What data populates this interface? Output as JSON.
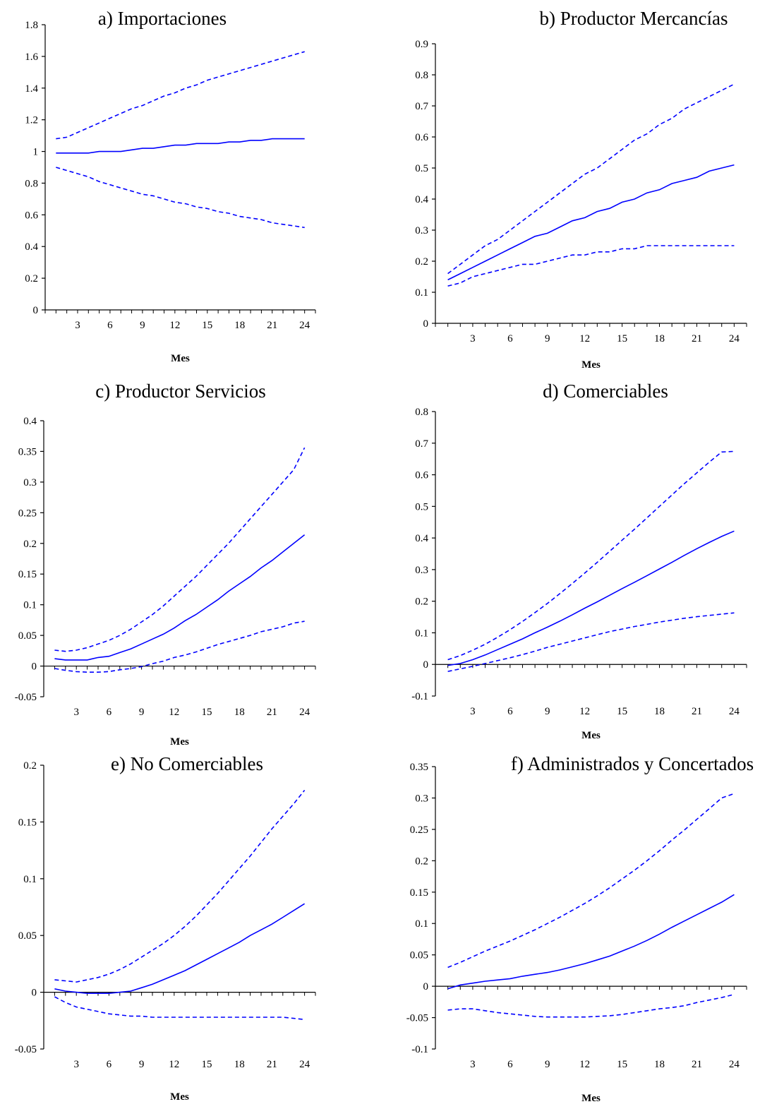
{
  "figure": {
    "series_color": "#0000ff",
    "axis_color": "#000000",
    "background": "#ffffff"
  },
  "chart_data": [
    {
      "id": "a",
      "type": "line",
      "title": "a)      Importaciones",
      "xlabel": "Mes",
      "ylabel": "",
      "xlim": [
        0,
        25
      ],
      "ylim": [
        0,
        1.8
      ],
      "x_ticks": [
        3,
        6,
        9,
        12,
        15,
        18,
        21,
        24
      ],
      "y_ticks": [
        0,
        0.2,
        0.4,
        0.6,
        0.8,
        1,
        1.2,
        1.4,
        1.6,
        1.8
      ],
      "y_tick_labels": [
        "0",
        "0.2",
        "0.4",
        "0.6",
        "0.8",
        "1",
        "1.2",
        "1.4",
        "1.6",
        "1.8"
      ],
      "grid": false,
      "x": [
        1,
        2,
        3,
        4,
        5,
        6,
        7,
        8,
        9,
        10,
        11,
        12,
        13,
        14,
        15,
        16,
        17,
        18,
        19,
        20,
        21,
        22,
        23,
        24
      ],
      "series": [
        {
          "style": "solid",
          "values": [
            0.99,
            0.99,
            0.99,
            0.99,
            1.0,
            1.0,
            1.0,
            1.01,
            1.02,
            1.02,
            1.03,
            1.04,
            1.04,
            1.05,
            1.05,
            1.05,
            1.06,
            1.06,
            1.07,
            1.07,
            1.08,
            1.08,
            1.08,
            1.08
          ]
        },
        {
          "style": "dashed",
          "values": [
            1.08,
            1.09,
            1.12,
            1.15,
            1.18,
            1.21,
            1.24,
            1.27,
            1.29,
            1.32,
            1.35,
            1.37,
            1.4,
            1.42,
            1.45,
            1.47,
            1.49,
            1.51,
            1.53,
            1.55,
            1.57,
            1.59,
            1.61,
            1.63
          ]
        },
        {
          "style": "dashed",
          "values": [
            0.9,
            0.88,
            0.86,
            0.84,
            0.81,
            0.79,
            0.77,
            0.75,
            0.73,
            0.72,
            0.7,
            0.68,
            0.67,
            0.65,
            0.64,
            0.62,
            0.61,
            0.59,
            0.58,
            0.57,
            0.55,
            0.54,
            0.53,
            0.52
          ]
        }
      ]
    },
    {
      "id": "b",
      "type": "line",
      "title": "b)   Productor Mercancías",
      "xlabel": "Mes",
      "ylabel": "",
      "xlim": [
        0,
        25
      ],
      "ylim": [
        0,
        0.9
      ],
      "x_ticks": [
        3,
        6,
        9,
        12,
        15,
        18,
        21,
        24
      ],
      "y_ticks": [
        0,
        0.1,
        0.2,
        0.3,
        0.4,
        0.5,
        0.6,
        0.7,
        0.8,
        0.9
      ],
      "y_tick_labels": [
        "0",
        "0.1",
        "0.2",
        "0.3",
        "0.4",
        "0.5",
        "0.6",
        "0.7",
        "0.8",
        "0.9"
      ],
      "grid": false,
      "x": [
        1,
        2,
        3,
        4,
        5,
        6,
        7,
        8,
        9,
        10,
        11,
        12,
        13,
        14,
        15,
        16,
        17,
        18,
        19,
        20,
        21,
        22,
        23,
        24
      ],
      "series": [
        {
          "style": "solid",
          "values": [
            0.14,
            0.16,
            0.18,
            0.2,
            0.22,
            0.24,
            0.26,
            0.28,
            0.29,
            0.31,
            0.33,
            0.34,
            0.36,
            0.37,
            0.39,
            0.4,
            0.42,
            0.43,
            0.45,
            0.46,
            0.47,
            0.49,
            0.5,
            0.51
          ]
        },
        {
          "style": "dashed",
          "values": [
            0.16,
            0.19,
            0.22,
            0.25,
            0.27,
            0.3,
            0.33,
            0.36,
            0.39,
            0.42,
            0.45,
            0.48,
            0.5,
            0.53,
            0.56,
            0.59,
            0.61,
            0.64,
            0.66,
            0.69,
            0.71,
            0.73,
            0.75,
            0.77
          ]
        },
        {
          "style": "dashed",
          "values": [
            0.12,
            0.13,
            0.15,
            0.16,
            0.17,
            0.18,
            0.19,
            0.19,
            0.2,
            0.21,
            0.22,
            0.22,
            0.23,
            0.23,
            0.24,
            0.24,
            0.25,
            0.25,
            0.25,
            0.25,
            0.25,
            0.25,
            0.25,
            0.25
          ]
        }
      ]
    },
    {
      "id": "c",
      "type": "line",
      "title": "c)   Productor Servicios",
      "xlabel": "Mes",
      "ylabel": "",
      "xlim": [
        0,
        25
      ],
      "ylim": [
        -0.05,
        0.4
      ],
      "x_ticks": [
        3,
        6,
        9,
        12,
        15,
        18,
        21,
        24
      ],
      "y_ticks": [
        -0.05,
        0,
        0.05,
        0.1,
        0.15,
        0.2,
        0.25,
        0.3,
        0.35,
        0.4
      ],
      "y_tick_labels": [
        "-0.05",
        "0",
        "0.05",
        "0.1",
        "0.15",
        "0.2",
        "0.25",
        "0.3",
        "0.35",
        "0.4"
      ],
      "grid": false,
      "x": [
        1,
        2,
        3,
        4,
        5,
        6,
        7,
        8,
        9,
        10,
        11,
        12,
        13,
        14,
        15,
        16,
        17,
        18,
        19,
        20,
        21,
        22,
        23,
        24
      ],
      "series": [
        {
          "style": "solid",
          "values": [
            0.012,
            0.01,
            0.01,
            0.01,
            0.014,
            0.016,
            0.022,
            0.028,
            0.036,
            0.044,
            0.052,
            0.062,
            0.074,
            0.084,
            0.096,
            0.108,
            0.122,
            0.134,
            0.146,
            0.16,
            0.172,
            0.186,
            0.2,
            0.214
          ]
        },
        {
          "style": "dashed",
          "values": [
            0.026,
            0.024,
            0.026,
            0.03,
            0.036,
            0.042,
            0.05,
            0.06,
            0.072,
            0.084,
            0.098,
            0.114,
            0.13,
            0.146,
            0.164,
            0.182,
            0.2,
            0.22,
            0.24,
            0.26,
            0.28,
            0.3,
            0.32,
            0.356
          ]
        },
        {
          "style": "dashed",
          "values": [
            -0.004,
            -0.007,
            -0.009,
            -0.01,
            -0.01,
            -0.009,
            -0.006,
            -0.004,
            -0.001,
            0.004,
            0.008,
            0.014,
            0.018,
            0.023,
            0.029,
            0.035,
            0.04,
            0.045,
            0.05,
            0.056,
            0.06,
            0.064,
            0.07,
            0.073
          ]
        }
      ]
    },
    {
      "id": "d",
      "type": "line",
      "title": "d)   Comerciables",
      "xlabel": "Mes",
      "ylabel": "",
      "xlim": [
        0,
        25
      ],
      "ylim": [
        -0.1,
        0.8
      ],
      "x_ticks": [
        3,
        6,
        9,
        12,
        15,
        18,
        21,
        24
      ],
      "y_ticks": [
        -0.1,
        0,
        0.1,
        0.2,
        0.3,
        0.4,
        0.5,
        0.6,
        0.7,
        0.8
      ],
      "y_tick_labels": [
        "-0.1",
        "0",
        "0.1",
        "0.2",
        "0.3",
        "0.4",
        "0.5",
        "0.6",
        "0.7",
        "0.8"
      ],
      "grid": false,
      "x": [
        1,
        2,
        3,
        4,
        5,
        6,
        7,
        8,
        9,
        10,
        11,
        12,
        13,
        14,
        15,
        16,
        17,
        18,
        19,
        20,
        21,
        22,
        23,
        24
      ],
      "series": [
        {
          "style": "solid",
          "values": [
            -0.003,
            0.003,
            0.015,
            0.03,
            0.047,
            0.064,
            0.081,
            0.1,
            0.118,
            0.137,
            0.157,
            0.178,
            0.198,
            0.219,
            0.24,
            0.26,
            0.281,
            0.302,
            0.323,
            0.345,
            0.366,
            0.386,
            0.405,
            0.422
          ]
        },
        {
          "style": "dashed",
          "values": [
            0.015,
            0.028,
            0.045,
            0.064,
            0.086,
            0.11,
            0.136,
            0.164,
            0.193,
            0.224,
            0.256,
            0.289,
            0.323,
            0.358,
            0.393,
            0.428,
            0.464,
            0.5,
            0.536,
            0.572,
            0.606,
            0.64,
            0.672,
            0.674
          ]
        },
        {
          "style": "dashed",
          "values": [
            -0.022,
            -0.014,
            -0.006,
            0.003,
            0.012,
            0.021,
            0.031,
            0.042,
            0.054,
            0.064,
            0.074,
            0.084,
            0.094,
            0.104,
            0.112,
            0.12,
            0.127,
            0.134,
            0.14,
            0.146,
            0.151,
            0.155,
            0.159,
            0.163
          ]
        }
      ]
    },
    {
      "id": "e",
      "type": "line",
      "title": "e)   No Comerciables",
      "xlabel": "Mes",
      "ylabel": "",
      "xlim": [
        0,
        25
      ],
      "ylim": [
        -0.05,
        0.2
      ],
      "x_ticks": [
        3,
        6,
        9,
        12,
        15,
        18,
        21,
        24
      ],
      "y_ticks": [
        -0.05,
        0,
        0.05,
        0.1,
        0.15,
        0.2
      ],
      "y_tick_labels": [
        "-0.05",
        "0",
        "0.05",
        "0.1",
        "0.15",
        "0.2"
      ],
      "grid": false,
      "x": [
        1,
        2,
        3,
        4,
        5,
        6,
        7,
        8,
        9,
        10,
        11,
        12,
        13,
        14,
        15,
        16,
        17,
        18,
        19,
        20,
        21,
        22,
        23,
        24
      ],
      "series": [
        {
          "style": "solid",
          "values": [
            0.003,
            0.001,
            0.0,
            -0.001,
            -0.001,
            -0.001,
            0.0,
            0.001,
            0.004,
            0.007,
            0.011,
            0.015,
            0.019,
            0.024,
            0.029,
            0.034,
            0.039,
            0.044,
            0.05,
            0.055,
            0.06,
            0.066,
            0.072,
            0.078
          ]
        },
        {
          "style": "dashed",
          "values": [
            0.011,
            0.01,
            0.009,
            0.011,
            0.013,
            0.016,
            0.02,
            0.025,
            0.031,
            0.037,
            0.043,
            0.05,
            0.058,
            0.067,
            0.077,
            0.087,
            0.098,
            0.109,
            0.12,
            0.132,
            0.144,
            0.155,
            0.166,
            0.178
          ]
        },
        {
          "style": "dashed",
          "values": [
            -0.004,
            -0.009,
            -0.013,
            -0.015,
            -0.017,
            -0.019,
            -0.02,
            -0.021,
            -0.021,
            -0.022,
            -0.022,
            -0.022,
            -0.022,
            -0.022,
            -0.022,
            -0.022,
            -0.022,
            -0.022,
            -0.022,
            -0.022,
            -0.022,
            -0.022,
            -0.023,
            -0.024
          ]
        }
      ]
    },
    {
      "id": "f",
      "type": "line",
      "title": "f)   Administrados y Concertados",
      "xlabel": "Mes",
      "ylabel": "",
      "xlim": [
        0,
        25
      ],
      "ylim": [
        -0.1,
        0.35
      ],
      "x_ticks": [
        3,
        6,
        9,
        12,
        15,
        18,
        21,
        24
      ],
      "y_ticks": [
        -0.1,
        -0.05,
        0,
        0.05,
        0.1,
        0.15,
        0.2,
        0.25,
        0.3,
        0.35
      ],
      "y_tick_labels": [
        "-0.1",
        "-0.05",
        "0",
        "0.05",
        "0.1",
        "0.15",
        "0.2",
        "0.25",
        "0.3",
        "0.35"
      ],
      "grid": false,
      "x": [
        1,
        2,
        3,
        4,
        5,
        6,
        7,
        8,
        9,
        10,
        11,
        12,
        13,
        14,
        15,
        16,
        17,
        18,
        19,
        20,
        21,
        22,
        23,
        24
      ],
      "series": [
        {
          "style": "solid",
          "values": [
            -0.004,
            0.002,
            0.005,
            0.008,
            0.01,
            0.012,
            0.016,
            0.019,
            0.022,
            0.026,
            0.031,
            0.036,
            0.042,
            0.048,
            0.056,
            0.064,
            0.073,
            0.083,
            0.094,
            0.104,
            0.114,
            0.124,
            0.134,
            0.146
          ]
        },
        {
          "style": "dashed",
          "values": [
            0.03,
            0.038,
            0.047,
            0.056,
            0.064,
            0.072,
            0.081,
            0.09,
            0.1,
            0.11,
            0.121,
            0.132,
            0.144,
            0.157,
            0.171,
            0.185,
            0.2,
            0.216,
            0.233,
            0.249,
            0.266,
            0.283,
            0.3,
            0.307
          ]
        },
        {
          "style": "dashed",
          "values": [
            -0.038,
            -0.036,
            -0.036,
            -0.039,
            -0.042,
            -0.044,
            -0.046,
            -0.048,
            -0.049,
            -0.049,
            -0.049,
            -0.049,
            -0.048,
            -0.047,
            -0.045,
            -0.042,
            -0.039,
            -0.036,
            -0.034,
            -0.031,
            -0.026,
            -0.022,
            -0.018,
            -0.013
          ]
        }
      ]
    }
  ]
}
